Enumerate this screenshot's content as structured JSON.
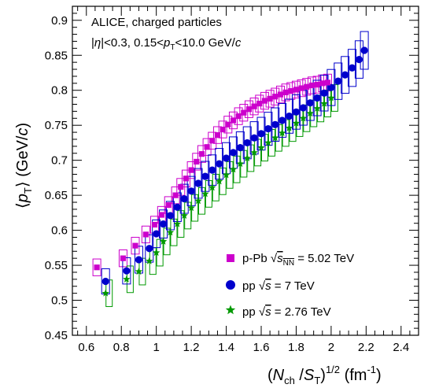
{
  "chart_data": {
    "type": "scatter",
    "annotation_line1": "ALICE, charged particles",
    "annotation_line2": "|η|<0.3, 0.15<p_T<10.0 GeV/c",
    "xlabel": "(N_ch / S_T)^1/2 (fm^-1)",
    "ylabel": "⟨p_T⟩ (GeV/c)",
    "xlim": [
      0.52,
      2.5
    ],
    "ylim": [
      0.45,
      0.92
    ],
    "x_ticks": [
      0.6,
      0.8,
      1,
      1.2,
      1.4,
      1.6,
      1.8,
      2,
      2.2,
      2.4
    ],
    "x_tick_labels": [
      "0.6",
      "0.8",
      "1",
      "1.2",
      "1.4",
      "1.6",
      "1.8",
      "2",
      "2.2",
      "2.4"
    ],
    "y_ticks": [
      0.45,
      0.5,
      0.55,
      0.6,
      0.65,
      0.7,
      0.75,
      0.8,
      0.85,
      0.9
    ],
    "y_tick_labels": [
      "0.45",
      "0.5",
      "0.55",
      "0.6",
      "0.65",
      "0.7",
      "0.75",
      "0.8",
      "0.85",
      "0.9"
    ],
    "legend_position": "bottom-right",
    "series": [
      {
        "name": "p-Pb √s_NN = 5.02 TeV",
        "legend_prefix": "p-Pb",
        "legend_sub": "NN",
        "legend_suffix": "= 5.02 TeV",
        "marker": "square",
        "color": "#cc00cc",
        "x": [
          0.66,
          0.81,
          0.88,
          0.94,
          0.99,
          1.03,
          1.07,
          1.11,
          1.14,
          1.17,
          1.2,
          1.23,
          1.26,
          1.29,
          1.32,
          1.35,
          1.38,
          1.41,
          1.44,
          1.47,
          1.5,
          1.53,
          1.56,
          1.59,
          1.62,
          1.65,
          1.68,
          1.71,
          1.74,
          1.77,
          1.8,
          1.83,
          1.86,
          1.89,
          1.92,
          1.95,
          1.98
        ],
        "y": [
          0.547,
          0.56,
          0.578,
          0.594,
          0.608,
          0.622,
          0.636,
          0.65,
          0.662,
          0.674,
          0.686,
          0.698,
          0.709,
          0.719,
          0.728,
          0.736,
          0.744,
          0.751,
          0.757,
          0.763,
          0.768,
          0.773,
          0.777,
          0.781,
          0.785,
          0.788,
          0.791,
          0.794,
          0.797,
          0.799,
          0.801,
          0.803,
          0.805,
          0.807,
          0.808,
          0.81,
          0.811
        ],
        "sys_err": [
          0.012,
          0.012,
          0.012,
          0.012,
          0.012,
          0.012,
          0.012,
          0.012,
          0.012,
          0.012,
          0.012,
          0.012,
          0.012,
          0.012,
          0.012,
          0.012,
          0.012,
          0.012,
          0.012,
          0.012,
          0.012,
          0.012,
          0.012,
          0.012,
          0.012,
          0.012,
          0.012,
          0.012,
          0.012,
          0.012,
          0.012,
          0.012,
          0.012,
          0.012,
          0.012,
          0.012,
          0.012
        ]
      },
      {
        "name": "pp √s = 7 TeV",
        "legend_prefix": "pp",
        "legend_sub": "",
        "legend_suffix": "= 7 TeV",
        "marker": "circle",
        "color": "#0000cc",
        "x": [
          0.71,
          0.83,
          0.9,
          0.96,
          1.0,
          1.04,
          1.08,
          1.12,
          1.16,
          1.2,
          1.24,
          1.28,
          1.32,
          1.36,
          1.4,
          1.44,
          1.48,
          1.52,
          1.56,
          1.6,
          1.64,
          1.68,
          1.72,
          1.76,
          1.8,
          1.84,
          1.88,
          1.92,
          1.96,
          2.0,
          2.04,
          2.08,
          2.12,
          2.16,
          2.19
        ],
        "y": [
          0.527,
          0.542,
          0.558,
          0.574,
          0.595,
          0.609,
          0.621,
          0.633,
          0.645,
          0.656,
          0.667,
          0.677,
          0.686,
          0.695,
          0.703,
          0.711,
          0.718,
          0.725,
          0.732,
          0.738,
          0.745,
          0.751,
          0.757,
          0.763,
          0.769,
          0.775,
          0.782,
          0.789,
          0.796,
          0.804,
          0.813,
          0.822,
          0.832,
          0.844,
          0.857
        ]
      },
      {
        "name": "pp √s = 2.76 TeV",
        "legend_prefix": "pp",
        "legend_sub": "",
        "legend_suffix": "= 2.76 TeV",
        "marker": "star",
        "color": "#009900",
        "x": [
          0.71,
          0.83,
          0.9,
          0.96,
          1.0,
          1.04,
          1.08,
          1.12,
          1.16,
          1.2,
          1.24,
          1.28,
          1.32,
          1.36,
          1.4,
          1.44,
          1.48,
          1.52,
          1.56,
          1.6,
          1.64,
          1.68,
          1.72,
          1.76,
          1.8,
          1.84,
          1.88,
          1.92,
          1.96,
          2.0
        ],
        "y": [
          0.51,
          0.53,
          0.541,
          0.556,
          0.568,
          0.584,
          0.597,
          0.609,
          0.621,
          0.632,
          0.642,
          0.652,
          0.661,
          0.67,
          0.679,
          0.687,
          0.695,
          0.703,
          0.711,
          0.718,
          0.725,
          0.732,
          0.739,
          0.746,
          0.753,
          0.76,
          0.767,
          0.774,
          0.781,
          0.789
        ],
        "sys_err": [
          0.019,
          0.019,
          0.019,
          0.019,
          0.019,
          0.019,
          0.019,
          0.019,
          0.019,
          0.019,
          0.019,
          0.019,
          0.019,
          0.019,
          0.019,
          0.019,
          0.019,
          0.019,
          0.019,
          0.019,
          0.019,
          0.019,
          0.019,
          0.019,
          0.019,
          0.019,
          0.019,
          0.019,
          0.019,
          0.019
        ]
      }
    ]
  }
}
